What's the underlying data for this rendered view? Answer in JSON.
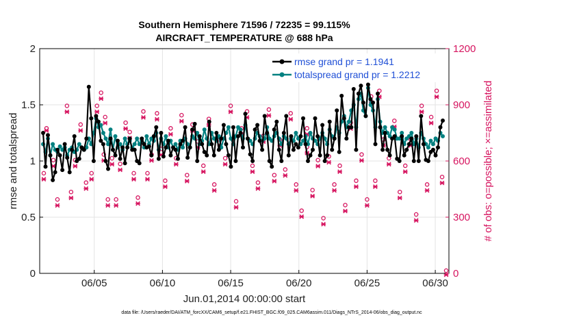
{
  "chart_data": {
    "type": "line",
    "title_line1": "Southern Hemisphere 71596 / 72235 = 99.115%",
    "title_line2": "AIRCRAFT_TEMPERATURE @ 688 hPa",
    "xlabel": "Jun.01,2014 00:00:00 start",
    "ylabel": "rmse and totalspread",
    "y2label": "# of obs: o=possible; ×=assimilated",
    "footnote": "data file: /Users/raeder/DAI/ATM_forcXX/CAM6_setup/f.e21.FHIST_BGC.f09_025.CAM6assim.011/Diags_NTrS_2014-06/obs_diag_output.nc",
    "xlim": [
      1.0,
      31.0
    ],
    "ylim": [
      0,
      2
    ],
    "y2lim": [
      0,
      1200
    ],
    "x_ticks": [
      5,
      10,
      15,
      20,
      25,
      30
    ],
    "x_tick_labels": [
      "06/05",
      "06/10",
      "06/15",
      "06/20",
      "06/25",
      "06/30"
    ],
    "y_ticks": [
      0,
      0.5,
      1,
      1.5,
      2
    ],
    "y_tick_labels": [
      "0",
      "0.5",
      "1",
      "1.5",
      "2"
    ],
    "y2_ticks": [
      0,
      300,
      600,
      900,
      1200
    ],
    "y2_tick_labels": [
      "0",
      "300",
      "600",
      "900",
      "1200"
    ],
    "grid": true,
    "colors": {
      "rmse": "#000000",
      "spread": "#008080",
      "obs": "#d6145f",
      "legend_text": "#1f4fd6"
    },
    "series": [
      {
        "name": "rmse grand pr = 1.1941",
        "axis": "left",
        "values": [
          1.25,
          0.95,
          1.23,
          1.05,
          0.83,
          0.9,
          1.1,
          1.05,
          0.92,
          1.15,
          1.03,
          0.9,
          1.1,
          1.22,
          1.0,
          1.02,
          1.12,
          1.1,
          1.2,
          1.66,
          1.38,
          1.0,
          1.4,
          1.35,
          1.18,
          1.15,
          1.0,
          0.93,
          1.2,
          1.1,
          1.05,
          1.18,
          1.02,
          1.12,
          0.98,
          1.12,
          1.2,
          1.1,
          1.1,
          1.0,
          0.98,
          1.2,
          1.15,
          1.12,
          1.13,
          1.05,
          1.22,
          1.3,
          1.02,
          1.25,
          1.04,
          1.12,
          1.18,
          1.05,
          1.12,
          1.1,
          1.02,
          1.15,
          1.18,
          1.3,
          1.03,
          1.12,
          1.28,
          1.33,
          1.0,
          1.22,
          1.15,
          1.08,
          1.05,
          1.35,
          1.15,
          1.05,
          1.25,
          1.1,
          1.2,
          1.32,
          1.15,
          1.05,
          0.95,
          1.3,
          1.0,
          1.22,
          1.25,
          1.12,
          1.42,
          1.2,
          1.06,
          1.0,
          1.28,
          1.32,
          1.18,
          1.1,
          1.4,
          1.25,
          1.0,
          0.95,
          1.28,
          1.35,
          1.1,
          1.0,
          1.25,
          1.4,
          1.05,
          1.22,
          1.1,
          1.15,
          1.12,
          1.22,
          1.38,
          1.15,
          1.0,
          1.05,
          1.1,
          1.38,
          1.22,
          1.05,
          1.32,
          1.0,
          1.05,
          1.35,
          1.1,
          1.2,
          1.45,
          1.08,
          1.58,
          1.38,
          1.2,
          1.3,
          1.3,
          1.64,
          1.1,
          1.6,
          1.67,
          1.52,
          1.4,
          1.68,
          1.55,
          1.52,
          1.15,
          1.6,
          1.3,
          1.1,
          1.25,
          1.1,
          1.05,
          1.2,
          1.22,
          1.02,
          1.0,
          1.22,
          1.05,
          1.1,
          1.15,
          1.2,
          1.0,
          1.22,
          1.0,
          1.4,
          1.15,
          1.01,
          1.0,
          1.08,
          1.1,
          1.05,
          1.12,
          1.3,
          1.36
        ],
        "x_start": 1.25,
        "x_step": 0.1765
      },
      {
        "name": "totalspread grand pr = 1.2212",
        "axis": "left",
        "values": [
          1.15,
          1.08,
          1.2,
          1.05,
          1.15,
          1.1,
          1.08,
          1.13,
          1.1,
          1.12,
          1.05,
          1.1,
          1.12,
          1.08,
          1.1,
          1.15,
          1.12,
          1.1,
          1.12,
          1.2,
          1.15,
          1.25,
          1.38,
          1.3,
          1.32,
          1.25,
          1.2,
          1.15,
          1.28,
          1.1,
          1.22,
          1.12,
          1.15,
          1.1,
          1.2,
          1.15,
          1.18,
          1.12,
          1.15,
          1.2,
          1.15,
          1.18,
          1.12,
          1.22,
          1.15,
          1.2,
          1.18,
          1.25,
          1.1,
          1.2,
          1.15,
          1.22,
          1.12,
          1.18,
          1.12,
          1.15,
          1.1,
          1.18,
          1.12,
          1.2,
          1.15,
          1.12,
          1.22,
          1.2,
          1.25,
          1.15,
          1.18,
          1.28,
          1.2,
          1.15,
          1.25,
          1.2,
          1.18,
          1.22,
          1.12,
          1.2,
          1.25,
          1.3,
          1.2,
          1.15,
          1.22,
          1.3,
          1.28,
          1.2,
          1.32,
          1.2,
          1.18,
          1.15,
          1.2,
          1.25,
          1.22,
          1.18,
          1.2,
          1.3,
          1.2,
          1.18,
          1.22,
          1.25,
          1.2,
          1.15,
          1.22,
          1.2,
          1.15,
          1.2,
          1.18,
          1.25,
          1.2,
          1.15,
          1.18,
          1.22,
          1.15,
          1.25,
          1.2,
          1.18,
          1.15,
          1.2,
          1.25,
          1.2,
          1.15,
          1.28,
          1.22,
          1.2,
          1.3,
          1.25,
          1.35,
          1.4,
          1.3,
          1.35,
          1.45,
          1.5,
          1.3,
          1.55,
          1.6,
          1.45,
          1.4,
          1.65,
          1.5,
          1.45,
          1.3,
          1.55,
          1.35,
          1.25,
          1.3,
          1.25,
          1.22,
          1.3,
          1.28,
          1.2,
          1.2,
          1.25,
          1.15,
          1.2,
          1.22,
          1.25,
          1.15,
          1.2,
          1.12,
          1.25,
          1.2,
          1.15,
          1.12,
          1.18,
          1.15,
          1.2,
          1.18,
          1.25,
          1.22
        ],
        "x_start": 1.25,
        "x_step": 0.1765
      }
    ],
    "obs_possible": {
      "axis": "right",
      "points": [
        [
          1.3,
          520
        ],
        [
          1.5,
          760
        ],
        [
          2.0,
          590
        ],
        [
          2.3,
          380
        ],
        [
          3.0,
          880
        ],
        [
          3.3,
          420
        ],
        [
          3.6,
          590
        ],
        [
          4.0,
          780
        ],
        [
          4.4,
          470
        ],
        [
          4.8,
          520
        ],
        [
          5.2,
          880
        ],
        [
          5.5,
          950
        ],
        [
          5.7,
          620
        ],
        [
          5.8,
          820
        ],
        [
          6.0,
          380
        ],
        [
          6.3,
          600
        ],
        [
          6.6,
          380
        ],
        [
          6.9,
          570
        ],
        [
          7.3,
          790
        ],
        [
          7.6,
          740
        ],
        [
          7.9,
          520
        ],
        [
          8.2,
          390
        ],
        [
          8.6,
          850
        ],
        [
          8.9,
          520
        ],
        [
          9.2,
          620
        ],
        [
          9.6,
          840
        ],
        [
          9.9,
          650
        ],
        [
          10.2,
          480
        ],
        [
          10.6,
          760
        ],
        [
          11.0,
          600
        ],
        [
          11.4,
          830
        ],
        [
          11.8,
          510
        ],
        [
          12.2,
          780
        ],
        [
          12.6,
          690
        ],
        [
          13.0,
          560
        ],
        [
          13.4,
          810
        ],
        [
          13.8,
          460
        ],
        [
          14.2,
          700
        ],
        [
          14.6,
          600
        ],
        [
          15.0,
          880
        ],
        [
          15.4,
          370
        ],
        [
          15.8,
          760
        ],
        [
          16.2,
          850
        ],
        [
          16.6,
          560
        ],
        [
          17.0,
          470
        ],
        [
          17.4,
          720
        ],
        [
          17.8,
          860
        ],
        [
          18.2,
          510
        ],
        [
          18.6,
          700
        ],
        [
          19.0,
          540
        ],
        [
          19.4,
          840
        ],
        [
          19.8,
          460
        ],
        [
          20.2,
          320
        ],
        [
          20.6,
          660
        ],
        [
          20.6,
          760
        ],
        [
          21.0,
          430
        ],
        [
          21.4,
          590
        ],
        [
          21.8,
          280
        ],
        [
          22.2,
          610
        ],
        [
          22.6,
          460
        ],
        [
          23.0,
          560
        ],
        [
          23.4,
          350
        ],
        [
          23.8,
          790
        ],
        [
          24.2,
          480
        ],
        [
          24.6,
          620
        ],
        [
          25.0,
          380
        ],
        [
          25.3,
          930
        ],
        [
          25.6,
          480
        ],
        [
          25.9,
          960
        ],
        [
          26.2,
          700
        ],
        [
          26.6,
          600
        ],
        [
          27.0,
          800
        ],
        [
          27.4,
          420
        ],
        [
          27.8,
          560
        ],
        [
          28.2,
          700
        ],
        [
          28.6,
          300
        ],
        [
          29.0,
          880
        ],
        [
          29.4,
          460
        ],
        [
          29.7,
          820
        ],
        [
          30.1,
          960
        ],
        [
          30.5,
          500
        ],
        [
          30.8,
          0
        ]
      ]
    },
    "obs_assimilated": {
      "axis": "right",
      "points": [
        [
          1.3,
          510
        ],
        [
          1.5,
          770
        ],
        [
          2.0,
          580
        ],
        [
          2.3,
          370
        ],
        [
          3.0,
          870
        ],
        [
          3.3,
          410
        ],
        [
          3.6,
          580
        ],
        [
          4.0,
          770
        ],
        [
          4.4,
          460
        ],
        [
          4.8,
          510
        ],
        [
          5.2,
          870
        ],
        [
          5.5,
          940
        ],
        [
          5.7,
          610
        ],
        [
          5.8,
          810
        ],
        [
          6.0,
          370
        ],
        [
          6.3,
          590
        ],
        [
          6.6,
          370
        ],
        [
          6.9,
          560
        ],
        [
          7.3,
          780
        ],
        [
          7.6,
          730
        ],
        [
          7.9,
          510
        ],
        [
          8.2,
          380
        ],
        [
          8.6,
          840
        ],
        [
          8.9,
          510
        ],
        [
          9.2,
          610
        ],
        [
          9.6,
          830
        ],
        [
          9.9,
          640
        ],
        [
          10.2,
          470
        ],
        [
          10.6,
          750
        ],
        [
          11.0,
          590
        ],
        [
          11.4,
          820
        ],
        [
          11.8,
          500
        ],
        [
          12.2,
          770
        ],
        [
          12.6,
          680
        ],
        [
          13.0,
          550
        ],
        [
          13.4,
          800
        ],
        [
          13.8,
          450
        ],
        [
          14.2,
          690
        ],
        [
          14.6,
          590
        ],
        [
          15.0,
          870
        ],
        [
          15.4,
          360
        ],
        [
          15.8,
          750
        ],
        [
          16.2,
          840
        ],
        [
          16.6,
          550
        ],
        [
          17.0,
          460
        ],
        [
          17.4,
          710
        ],
        [
          17.8,
          850
        ],
        [
          18.2,
          500
        ],
        [
          18.6,
          690
        ],
        [
          19.0,
          530
        ],
        [
          19.4,
          830
        ],
        [
          19.8,
          450
        ],
        [
          20.2,
          310
        ],
        [
          20.6,
          650
        ],
        [
          20.6,
          750
        ],
        [
          21.0,
          420
        ],
        [
          21.4,
          580
        ],
        [
          21.8,
          270
        ],
        [
          22.2,
          600
        ],
        [
          22.6,
          450
        ],
        [
          23.0,
          550
        ],
        [
          23.4,
          340
        ],
        [
          23.8,
          780
        ],
        [
          24.2,
          470
        ],
        [
          24.6,
          610
        ],
        [
          25.0,
          370
        ],
        [
          25.3,
          920
        ],
        [
          25.6,
          470
        ],
        [
          25.9,
          950
        ],
        [
          26.2,
          690
        ],
        [
          26.6,
          590
        ],
        [
          27.0,
          790
        ],
        [
          27.4,
          410
        ],
        [
          27.8,
          550
        ],
        [
          28.2,
          690
        ],
        [
          28.6,
          290
        ],
        [
          29.0,
          870
        ],
        [
          29.4,
          450
        ],
        [
          29.7,
          810
        ],
        [
          30.1,
          950
        ],
        [
          30.5,
          490
        ],
        [
          30.8,
          0
        ]
      ]
    }
  }
}
